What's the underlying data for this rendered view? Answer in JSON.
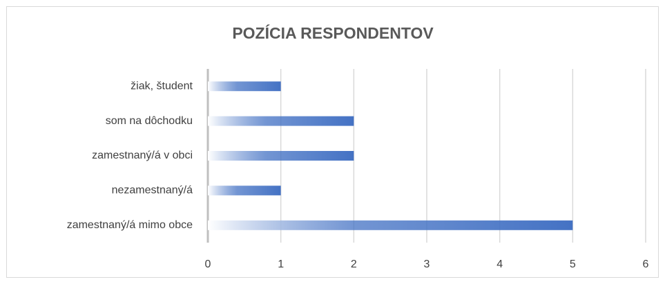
{
  "chart_data": {
    "type": "hbar",
    "title": "POZÍCIA RESPONDENTOV",
    "categories": [
      "žiak, študent",
      "som na dôchodku",
      "zamestnaný/á v obci",
      "nezamestnaný/á",
      "zamestnaný/á mimo obce"
    ],
    "values": [
      1,
      2,
      2,
      1,
      5
    ],
    "color": "#4472c4",
    "xlim": [
      0,
      6
    ],
    "xticks": [
      0,
      1,
      2,
      3,
      4,
      5,
      6
    ],
    "grid": true
  }
}
